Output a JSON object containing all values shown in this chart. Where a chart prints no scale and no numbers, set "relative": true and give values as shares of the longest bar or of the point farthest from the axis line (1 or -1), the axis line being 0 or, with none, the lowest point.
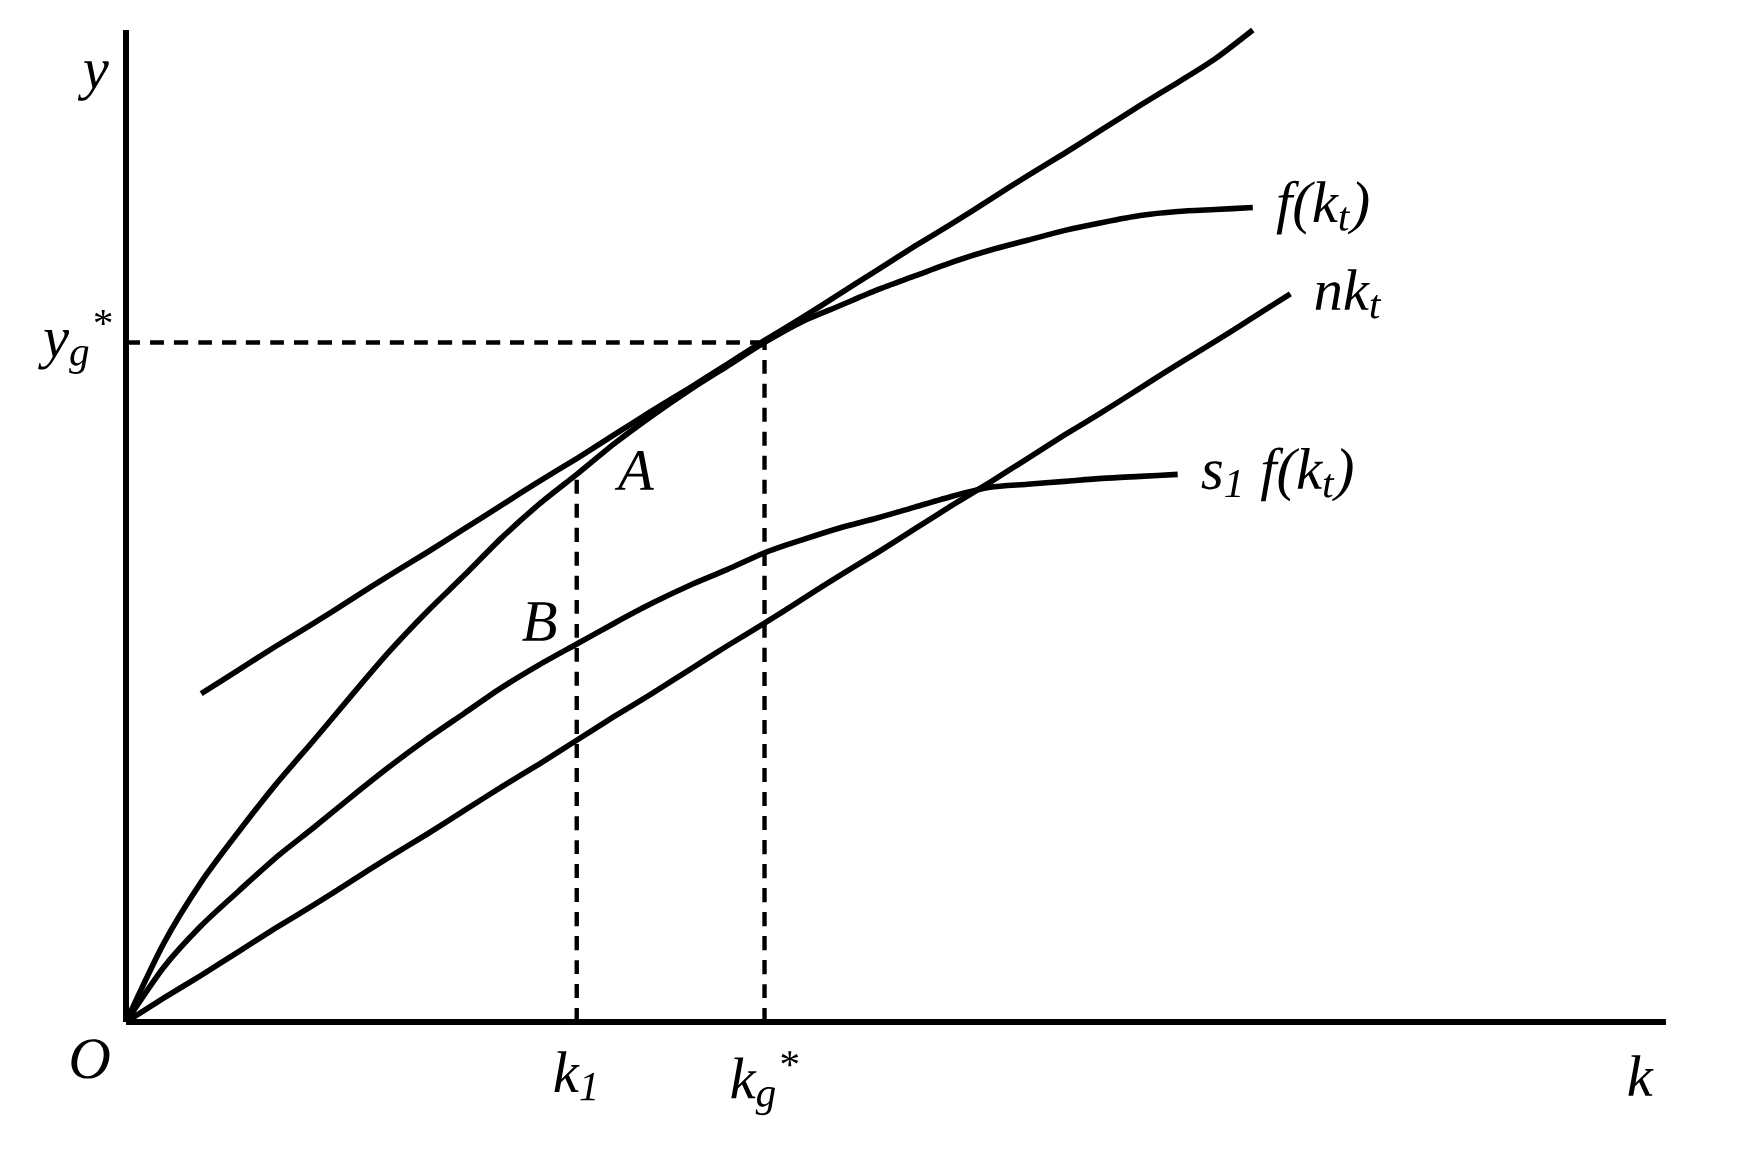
{
  "chart_data": {
    "type": "line",
    "relative": true,
    "ylabel": "y",
    "line_style": "solid",
    "categories": [
      null,
      null,
      null,
      null,
      null,
      null,
      null,
      null,
      null,
      null,
      null,
      null,
      "k$_{1}$",
      null,
      null,
      null,
      null,
      "k$_{g}$$^{*}$",
      null,
      null,
      null,
      null,
      null,
      null,
      null,
      null,
      null,
      null,
      null,
      null,
      null,
      null
    ],
    "series": [
      {
        "name": "f(k$_{t}$)",
        "color": "#000000",
        "values": [
          0,
          0.079,
          0.141,
          0.192,
          0.24,
          0.284,
          0.329,
          0.373,
          0.413,
          0.45,
          0.488,
          0.522,
          0.552,
          0.583,
          0.611,
          0.637,
          0.661,
          0.685,
          0.706,
          0.722,
          0.738,
          0.752,
          0.766,
          0.778,
          0.788,
          0.798,
          0.806,
          0.813,
          0.817,
          0.819,
          0.821,
          null
        ]
      },
      {
        "name": "nk$_{t}$",
        "color": "#000000",
        "values": [
          0,
          0.024,
          0.047,
          0.071,
          0.095,
          0.118,
          0.142,
          0.166,
          0.189,
          0.213,
          0.237,
          0.26,
          0.284,
          0.308,
          0.331,
          0.355,
          0.379,
          0.402,
          0.426,
          0.45,
          0.473,
          0.497,
          0.521,
          0.544,
          0.568,
          0.592,
          0.615,
          0.639,
          0.663,
          0.686,
          0.71,
          0.734
        ]
      },
      {
        "name": "s$_{1}$ f(k$_{t}$)",
        "color": "#000000",
        "values": [
          0,
          0.055,
          0.097,
          0.132,
          0.166,
          0.196,
          0.227,
          0.257,
          0.285,
          0.311,
          0.337,
          0.36,
          0.381,
          0.402,
          0.422,
          0.44,
          0.456,
          0.473,
          0.486,
          0.498,
          0.508,
          0.519,
          0.53,
          0.539,
          0.542,
          0.545,
          0.548,
          0.55,
          0.552,
          null,
          null,
          null
        ]
      },
      {
        "color": "#000000",
        "values": [
          null,
          null,
          0.331,
          0.355,
          0.379,
          0.402,
          0.426,
          0.45,
          0.473,
          0.497,
          0.521,
          0.545,
          0.568,
          0.592,
          0.616,
          0.639,
          0.663,
          0.687,
          0.71,
          0.734,
          0.758,
          0.782,
          0.805,
          0.829,
          0.853,
          0.876,
          0.9,
          0.924,
          0.947,
          0.971,
          1.0,
          null
        ]
      },
      {
        "color": "#000000",
        "line_style": "dashed",
        "x": [
          "k$_{1}$",
          "k$_{1}$"
        ],
        "values": [
          0,
          0.552
        ]
      },
      {
        "color": "#000000",
        "line_style": "dashed",
        "x": [
          "k$_{g}$$^{*}$",
          "k$_{g}$$^{*}$"
        ],
        "values": [
          0,
          0.685
        ]
      },
      {
        "color": "#000000",
        "line_style": "dashed",
        "values": [
          0.685,
          0.685,
          0.685,
          0.685,
          0.685,
          0.685,
          0.685,
          0.685,
          0.685,
          0.685,
          0.685,
          0.685,
          0.685,
          0.685,
          0.685,
          0.685,
          0.685,
          0.685,
          null,
          null,
          null,
          null,
          null,
          null,
          null,
          null,
          null,
          null,
          null,
          null,
          null,
          null
        ]
      }
    ],
    "annotations": [
      "O",
      "y$_{g}$$^{*}$",
      "k",
      {
        "text": "A",
        "x": "k$_{1}$",
        "y": 0.552
      },
      {
        "text": "B",
        "x": "k$_{1}$",
        "y": 0.381
      }
    ]
  }
}
